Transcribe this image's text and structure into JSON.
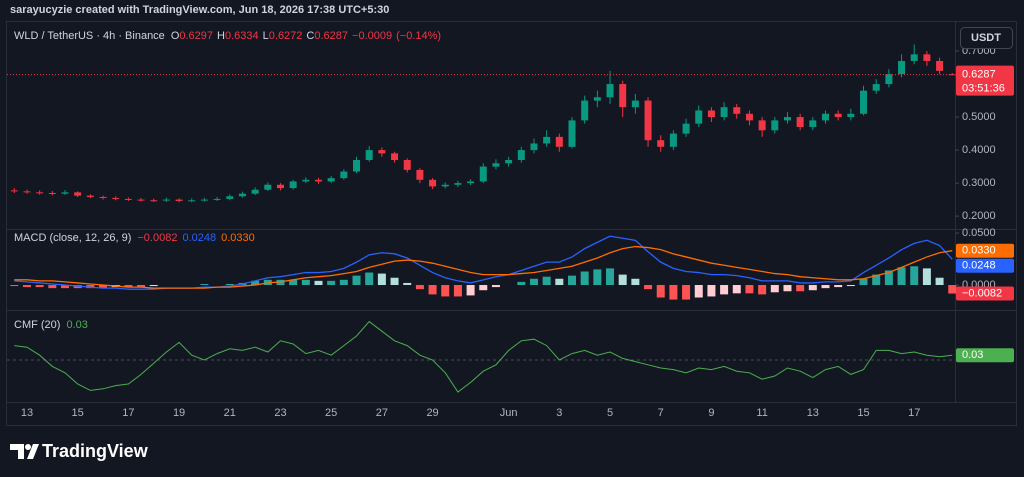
{
  "header": {
    "caption": "sarayucyzie created with TradingView.com, Jun 18, 2026 17:38 UTC+5:30",
    "currency_button": "USDT",
    "logo_text": "TradingView"
  },
  "chart_data": [
    {
      "type": "candlestick",
      "title": "WLD / TetherUS · 4h · Binance",
      "ohlc": [
        {
          "name": "O",
          "value": 0.6297
        },
        {
          "name": "H",
          "value": 0.6334
        },
        {
          "name": "L",
          "value": 0.6272
        },
        {
          "name": "C",
          "value": 0.6287
        }
      ],
      "change": {
        "value": -0.0009,
        "label": "−0.0009"
      },
      "change_percent": {
        "value": -0.14,
        "label": "(−0.14%)"
      },
      "countdown": "03:51:36",
      "categories": [
        null,
        "13",
        null,
        null,
        null,
        "15",
        null,
        null,
        null,
        "17",
        null,
        null,
        null,
        "19",
        null,
        null,
        null,
        "21",
        null,
        null,
        null,
        "23",
        null,
        null,
        null,
        "25",
        null,
        null,
        null,
        "27",
        null,
        null,
        null,
        "29",
        null,
        null,
        null,
        null,
        null,
        "Jun",
        null,
        null,
        null,
        "3",
        null,
        null,
        null,
        "5",
        null,
        null,
        null,
        "7",
        null,
        null,
        null,
        "9",
        null,
        null,
        null,
        "11",
        null,
        null,
        null,
        "13",
        null,
        null,
        null,
        "15",
        null,
        null,
        null,
        "17",
        null,
        null,
        null
      ],
      "open": [
        0.278,
        0.275,
        0.272,
        0.27,
        0.268,
        0.272,
        0.262,
        0.258,
        0.255,
        0.252,
        0.25,
        0.248,
        0.247,
        0.25,
        0.246,
        0.248,
        0.25,
        0.252,
        0.26,
        0.268,
        0.28,
        0.295,
        0.285,
        0.305,
        0.31,
        0.305,
        0.315,
        0.335,
        0.37,
        0.4,
        0.39,
        0.37,
        0.34,
        0.31,
        0.29,
        0.295,
        0.3,
        0.305,
        0.35,
        0.36,
        0.37,
        0.4,
        0.42,
        0.44,
        0.41,
        0.49,
        0.55,
        0.56,
        0.6,
        0.53,
        0.55,
        0.43,
        0.41,
        0.45,
        0.48,
        0.52,
        0.5,
        0.53,
        0.51,
        0.49,
        0.46,
        0.49,
        0.5,
        0.47,
        0.49,
        0.51,
        0.5,
        0.51,
        0.58,
        0.6,
        0.63,
        0.67,
        0.69,
        0.67,
        0.6297
      ],
      "high": [
        0.285,
        0.28,
        0.278,
        0.276,
        0.279,
        0.275,
        0.266,
        0.262,
        0.26,
        0.257,
        0.255,
        0.253,
        0.256,
        0.254,
        0.254,
        0.256,
        0.258,
        0.266,
        0.274,
        0.287,
        0.302,
        0.3,
        0.31,
        0.318,
        0.316,
        0.322,
        0.342,
        0.38,
        0.412,
        0.408,
        0.395,
        0.375,
        0.345,
        0.315,
        0.302,
        0.307,
        0.312,
        0.36,
        0.372,
        0.38,
        0.41,
        0.435,
        0.46,
        0.45,
        0.5,
        0.565,
        0.58,
        0.64,
        0.61,
        0.57,
        0.56,
        0.445,
        0.46,
        0.495,
        0.535,
        0.53,
        0.545,
        0.54,
        0.52,
        0.5,
        0.5,
        0.515,
        0.51,
        0.5,
        0.52,
        0.52,
        0.525,
        0.595,
        0.615,
        0.645,
        0.69,
        0.72,
        0.7,
        0.68,
        0.6334
      ],
      "low": [
        0.27,
        0.268,
        0.265,
        0.263,
        0.264,
        0.258,
        0.254,
        0.25,
        0.248,
        0.246,
        0.244,
        0.243,
        0.243,
        0.242,
        0.242,
        0.244,
        0.246,
        0.248,
        0.256,
        0.264,
        0.276,
        0.278,
        0.28,
        0.3,
        0.298,
        0.3,
        0.31,
        0.33,
        0.365,
        0.38,
        0.362,
        0.332,
        0.3,
        0.282,
        0.284,
        0.288,
        0.294,
        0.3,
        0.342,
        0.35,
        0.362,
        0.39,
        0.41,
        0.395,
        0.405,
        0.48,
        0.53,
        0.54,
        0.5,
        0.51,
        0.41,
        0.395,
        0.4,
        0.44,
        0.47,
        0.485,
        0.49,
        0.495,
        0.475,
        0.44,
        0.45,
        0.48,
        0.46,
        0.46,
        0.48,
        0.49,
        0.49,
        0.505,
        0.57,
        0.59,
        0.62,
        0.66,
        0.655,
        0.63,
        0.6272
      ],
      "close": [
        0.275,
        0.272,
        0.27,
        0.268,
        0.272,
        0.262,
        0.258,
        0.255,
        0.252,
        0.25,
        0.248,
        0.247,
        0.25,
        0.246,
        0.248,
        0.25,
        0.252,
        0.26,
        0.268,
        0.28,
        0.295,
        0.285,
        0.305,
        0.31,
        0.305,
        0.315,
        0.335,
        0.37,
        0.4,
        0.39,
        0.37,
        0.34,
        0.31,
        0.29,
        0.295,
        0.3,
        0.305,
        0.35,
        0.36,
        0.37,
        0.4,
        0.42,
        0.44,
        0.41,
        0.49,
        0.55,
        0.56,
        0.6,
        0.53,
        0.55,
        0.43,
        0.41,
        0.45,
        0.48,
        0.52,
        0.5,
        0.53,
        0.51,
        0.49,
        0.46,
        0.49,
        0.5,
        0.47,
        0.49,
        0.51,
        0.5,
        0.51,
        0.58,
        0.6,
        0.63,
        0.67,
        0.69,
        0.67,
        0.64,
        0.6287
      ],
      "up_color": "#089981",
      "down_color": "#f23645",
      "ylim": [
        0.164,
        0.788
      ],
      "yticks": [
        {
          "value": 0.2,
          "label": "0.2000"
        },
        {
          "value": 0.3,
          "label": "0.3000"
        },
        {
          "value": 0.4,
          "label": "0.4000"
        },
        {
          "value": 0.5,
          "label": "0.5000"
        },
        {
          "value": 0.7,
          "label": "0.7000"
        }
      ]
    },
    {
      "type": "macd",
      "title": "MACD (close, 12, 26, 9)",
      "legend": [
        {
          "value": -0.0082,
          "label": "−0.0082",
          "color": "#f23645"
        },
        {
          "value": 0.0248,
          "label": "0.0248",
          "color": "#2962ff"
        },
        {
          "value": 0.033,
          "label": "0.0330",
          "color": "#ff6d00"
        }
      ],
      "histogram_colors": [
        "#26a69a",
        "#b2dfdb",
        "#ff5252",
        "#ffcdd2"
      ],
      "series": [
        {
          "kind": "histogram",
          "values": [
            -0.001,
            -0.002,
            -0.002,
            -0.003,
            -0.003,
            -0.003,
            -0.003,
            -0.003,
            -0.002,
            -0.002,
            -0.002,
            -0.001,
            0.0,
            0.0,
            0.0,
            0.001,
            0.0,
            0.001,
            0.002,
            0.004,
            0.005,
            0.005,
            0.005,
            0.005,
            0.004,
            0.004,
            0.005,
            0.009,
            0.012,
            0.011,
            0.007,
            0.002,
            -0.004,
            -0.009,
            -0.011,
            -0.011,
            -0.01,
            -0.005,
            -0.002,
            0.0,
            0.003,
            0.006,
            0.008,
            0.006,
            0.009,
            0.013,
            0.015,
            0.016,
            0.01,
            0.006,
            -0.004,
            -0.012,
            -0.014,
            -0.014,
            -0.012,
            -0.011,
            -0.009,
            -0.008,
            -0.008,
            -0.009,
            -0.007,
            -0.006,
            -0.006,
            -0.005,
            -0.003,
            -0.002,
            -0.001,
            0.006,
            0.01,
            0.014,
            0.017,
            0.018,
            0.016,
            0.007,
            -0.0082
          ]
        },
        {
          "kind": "line",
          "color": "#2962ff",
          "values": [
            0.004,
            0.003,
            0.002,
            0.001,
            0.0,
            -0.001,
            -0.002,
            -0.003,
            -0.003,
            -0.004,
            -0.004,
            -0.004,
            -0.003,
            -0.003,
            -0.003,
            -0.002,
            -0.002,
            -0.001,
            0.001,
            0.004,
            0.007,
            0.008,
            0.01,
            0.012,
            0.012,
            0.013,
            0.016,
            0.022,
            0.029,
            0.031,
            0.03,
            0.026,
            0.019,
            0.012,
            0.007,
            0.004,
            0.002,
            0.005,
            0.008,
            0.01,
            0.014,
            0.018,
            0.022,
            0.022,
            0.027,
            0.035,
            0.041,
            0.047,
            0.045,
            0.043,
            0.032,
            0.022,
            0.016,
            0.013,
            0.012,
            0.01,
            0.01,
            0.009,
            0.007,
            0.004,
            0.004,
            0.004,
            0.002,
            0.002,
            0.003,
            0.003,
            0.004,
            0.012,
            0.019,
            0.026,
            0.034,
            0.04,
            0.043,
            0.038,
            0.0248
          ]
        },
        {
          "kind": "line",
          "color": "#ff6d00",
          "values": [
            0.005,
            0.005,
            0.004,
            0.004,
            0.003,
            0.002,
            0.001,
            0.0,
            -0.001,
            -0.002,
            -0.002,
            -0.003,
            -0.003,
            -0.003,
            -0.003,
            -0.003,
            -0.002,
            -0.002,
            -0.001,
            0.0,
            0.002,
            0.003,
            0.005,
            0.007,
            0.008,
            0.009,
            0.011,
            0.013,
            0.017,
            0.02,
            0.023,
            0.024,
            0.023,
            0.021,
            0.018,
            0.015,
            0.012,
            0.01,
            0.01,
            0.01,
            0.011,
            0.012,
            0.014,
            0.016,
            0.018,
            0.022,
            0.026,
            0.031,
            0.035,
            0.037,
            0.036,
            0.034,
            0.03,
            0.027,
            0.024,
            0.021,
            0.019,
            0.017,
            0.015,
            0.013,
            0.011,
            0.01,
            0.008,
            0.007,
            0.006,
            0.005,
            0.005,
            0.006,
            0.009,
            0.012,
            0.017,
            0.022,
            0.027,
            0.031,
            0.033
          ]
        }
      ],
      "ylim": [
        -0.0221,
        0.0529
      ],
      "yticks": [
        {
          "value": 0.0,
          "label": "0.0000"
        },
        {
          "value": 0.05,
          "label": "0.0500"
        }
      ]
    },
    {
      "type": "line",
      "title": "CMF (20)",
      "last_value": 0.03,
      "color": "#4caf50",
      "values": [
        0.09,
        0.08,
        0.03,
        -0.04,
        -0.08,
        -0.15,
        -0.19,
        -0.18,
        -0.16,
        -0.15,
        -0.09,
        -0.02,
        0.05,
        0.11,
        0.03,
        0.0,
        0.04,
        0.07,
        0.06,
        0.08,
        0.05,
        0.12,
        0.1,
        0.04,
        0.06,
        0.03,
        0.09,
        0.15,
        0.24,
        0.18,
        0.12,
        0.09,
        0.03,
        0.0,
        -0.08,
        -0.2,
        -0.14,
        -0.07,
        -0.03,
        0.06,
        0.12,
        0.13,
        0.09,
        0.0,
        0.04,
        0.06,
        0.03,
        0.05,
        0.01,
        -0.01,
        -0.03,
        -0.05,
        -0.06,
        -0.08,
        -0.05,
        -0.06,
        -0.04,
        -0.07,
        -0.08,
        -0.12,
        -0.1,
        -0.05,
        -0.07,
        -0.11,
        -0.06,
        -0.04,
        -0.09,
        -0.06,
        0.06,
        0.06,
        0.04,
        0.05,
        0.03,
        0.02,
        0.03
      ],
      "ylim": [
        -0.25,
        0.3
      ]
    }
  ]
}
